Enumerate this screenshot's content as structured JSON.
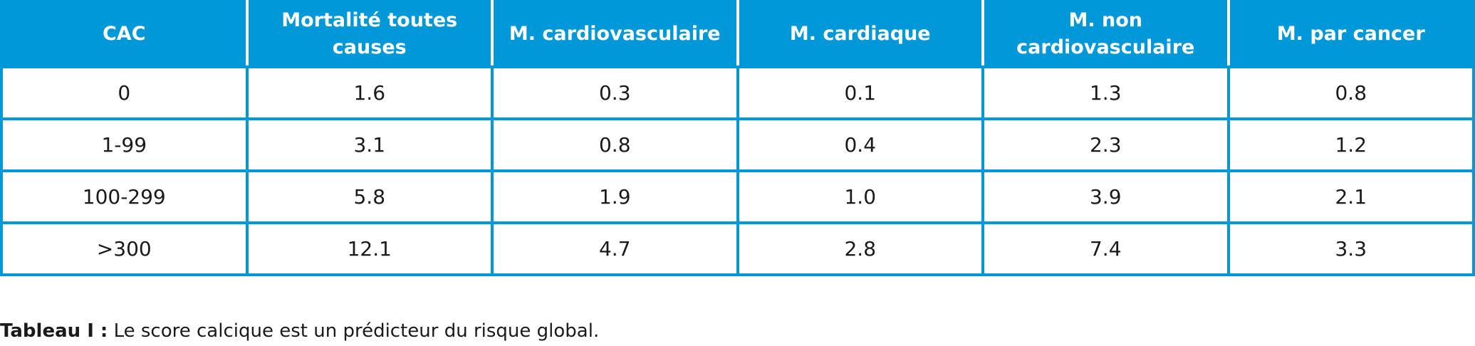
{
  "table": {
    "headers": [
      "CAC",
      "Mortalité toutes causes",
      "M. cardiovasculaire",
      "M. cardiaque",
      "M. non cardiovasculaire",
      "M. par cancer"
    ],
    "rows": [
      [
        "0",
        "1.6",
        "0.3",
        "0.1",
        "1.3",
        "0.8"
      ],
      [
        "1-99",
        "3.1",
        "0.8",
        "0.4",
        "2.3",
        "1.2"
      ],
      [
        "100-299",
        "5.8",
        "1.9",
        "1.0",
        "3.9",
        "2.1"
      ],
      [
        ">300",
        "12.1",
        "4.7",
        "2.8",
        "7.4",
        "3.3"
      ]
    ],
    "colors": {
      "header_bg": "#0098d8",
      "header_text": "#ffffff",
      "grid": "#0098d8"
    }
  },
  "caption": {
    "label": "Tableau I :",
    "text": " Le score calcique est un prédicteur du risque global."
  }
}
